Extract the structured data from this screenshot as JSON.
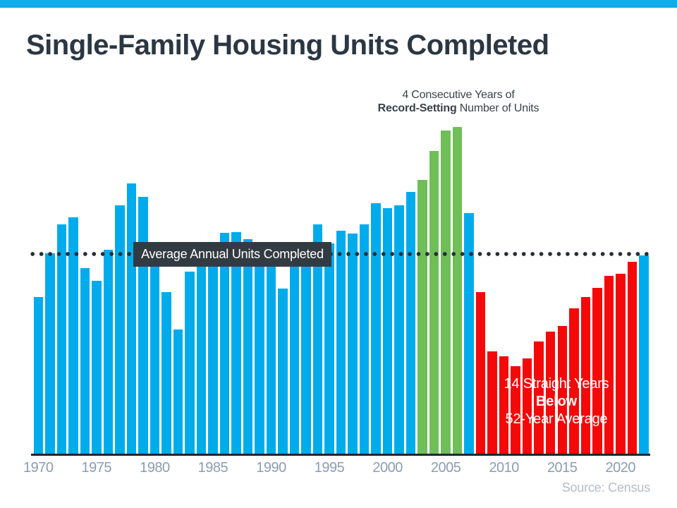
{
  "page": {
    "title": "Single-Family Housing Units Completed",
    "source": "Source: Census"
  },
  "chart_data": {
    "type": "bar",
    "title": "Single-Family Housing Units Completed",
    "unit": "thousands of single-family housing units completed per year",
    "x": [
      1970,
      1971,
      1972,
      1973,
      1974,
      1975,
      1976,
      1977,
      1978,
      1979,
      1980,
      1981,
      1982,
      1983,
      1984,
      1985,
      1986,
      1987,
      1988,
      1989,
      1990,
      1991,
      1992,
      1993,
      1994,
      1995,
      1996,
      1997,
      1998,
      1999,
      2000,
      2001,
      2002,
      2003,
      2004,
      2005,
      2006,
      2007,
      2008,
      2009,
      2010,
      2011,
      2012,
      2013,
      2014,
      2015,
      2016,
      2017,
      2018,
      2019,
      2020,
      2021,
      2022
    ],
    "values": [
      793,
      1014,
      1160,
      1197,
      940,
      875,
      1034,
      1258,
      1369,
      1301,
      957,
      818,
      631,
      924,
      1025,
      1072,
      1120,
      1123,
      1085,
      1026,
      966,
      838,
      964,
      1039,
      1160,
      1066,
      1129,
      1116,
      1160,
      1270,
      1242,
      1256,
      1325,
      1386,
      1531,
      1636,
      1654,
      1218,
      819,
      520,
      496,
      447,
      483,
      569,
      620,
      648,
      738,
      795,
      840,
      903,
      912,
      971,
      1005
    ],
    "x_tick_labels": [
      "1970",
      "1975",
      "1980",
      "1985",
      "1990",
      "1995",
      "2000",
      "2005",
      "2010",
      "2015",
      "2020"
    ],
    "ylim": [
      0,
      1700
    ],
    "grid": false,
    "legend": "none",
    "palette": {
      "blue": "#00ABEC",
      "green": "#6FBE57",
      "red": "#F50808",
      "charcoal": "#333B42"
    },
    "segments": [
      {
        "from": 1970,
        "to": 2002,
        "color": "blue"
      },
      {
        "from": 2003,
        "to": 2006,
        "color": "green"
      },
      {
        "from": 2007,
        "to": 2007,
        "color": "blue"
      },
      {
        "from": 2008,
        "to": 2021,
        "color": "red"
      },
      {
        "from": 2022,
        "to": 2022,
        "color": "blue"
      }
    ],
    "average_line": {
      "label": "Average Annual Units Completed",
      "value": 1010,
      "style": "dotted"
    },
    "annotations": {
      "record": {
        "line1": "4 Consecutive Years of",
        "line2_bold": "Record-Setting",
        "line2_rest": " Number of Units"
      },
      "below": {
        "line1": "14 Straight Years",
        "line2": "Below",
        "line3": "52-Year Average"
      }
    }
  }
}
